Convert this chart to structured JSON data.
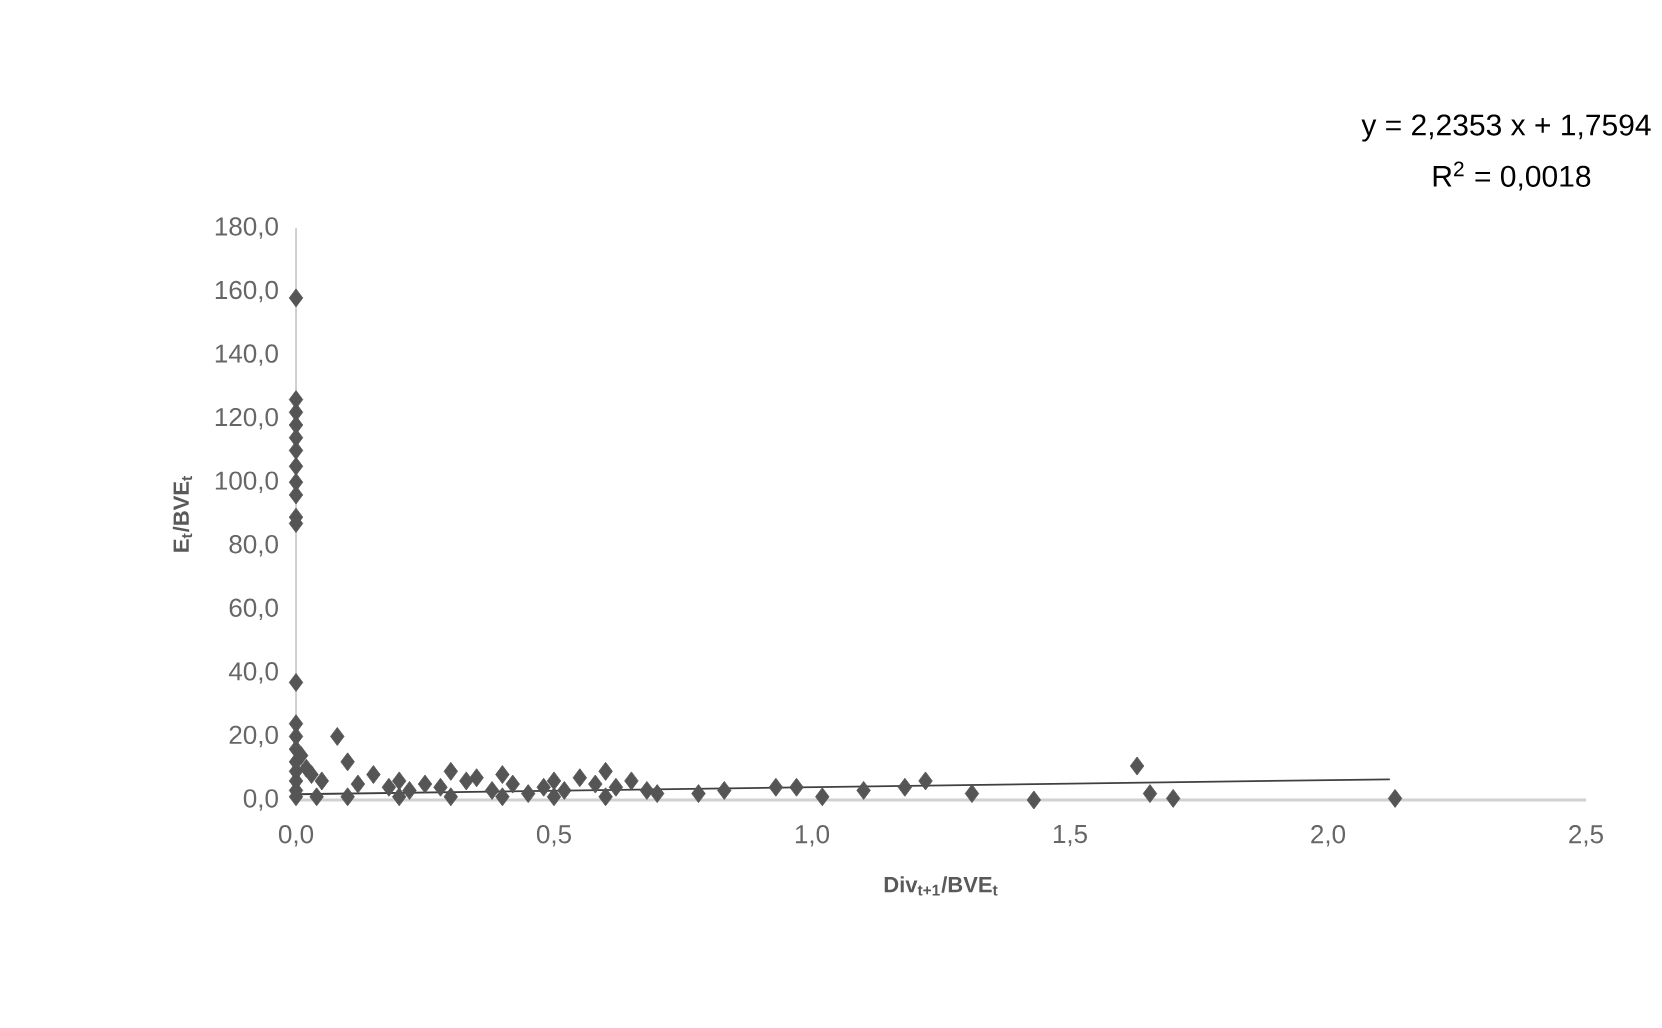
{
  "chart_data": {
    "type": "scatter",
    "xlabel": "Div$_{t+1}$/BVE$_{t}$",
    "ylabel": "E$_{t}$/BVE$_{t}$",
    "annotations": [
      "y = 2,2353 x + 1,7594",
      "R$^{2}$ = 0,0018"
    ],
    "xlim": [
      0,
      2.5
    ],
    "ylim": [
      0,
      180
    ],
    "xticks": [
      {
        "value": 0,
        "label": "0,0"
      },
      {
        "value": 0.5,
        "label": "0,5"
      },
      {
        "value": 1,
        "label": "1,0"
      },
      {
        "value": 1.5,
        "label": "1,5"
      },
      {
        "value": 2,
        "label": "2,0"
      },
      {
        "value": 2.5,
        "label": "2,5"
      }
    ],
    "yticks": [
      {
        "value": 0,
        "label": "0,0"
      },
      {
        "value": 20,
        "label": "20,0"
      },
      {
        "value": 40,
        "label": "40,0"
      },
      {
        "value": 60,
        "label": "60,0"
      },
      {
        "value": 80,
        "label": "80,0"
      },
      {
        "value": 100,
        "label": "100,0"
      },
      {
        "value": 120,
        "label": "120,0"
      },
      {
        "value": 140,
        "label": "140,0"
      },
      {
        "value": 160,
        "label": "160,0"
      },
      {
        "value": 180,
        "label": "180,0"
      }
    ],
    "series": [
      {
        "marker": "diamond",
        "color": "#555555",
        "x": [
          0,
          0,
          0,
          0,
          0,
          0,
          0,
          0,
          0,
          0,
          0,
          0,
          0,
          0,
          0,
          0,
          0,
          0,
          0,
          0,
          0.01,
          0.02,
          0.03,
          0.05,
          0.08,
          0.1,
          0.12,
          0.15,
          0.18,
          0.2,
          0.22,
          0.25,
          0.28,
          0.3,
          0.33,
          0.35,
          0.38,
          0.4,
          0.42,
          0.45,
          0.48,
          0.5,
          0.52,
          0.55,
          0.58,
          0.6,
          0.62,
          0.65,
          0.68,
          0.7,
          0.04,
          0.1,
          0.2,
          0.3,
          0.4,
          0.5,
          0.6,
          0.78,
          0.83,
          0.93,
          0.97,
          1.02,
          1.1,
          1.18,
          1.22,
          1.31,
          1.43,
          1.63,
          1.655,
          1.7,
          2.13
        ],
        "values": [
          158,
          126,
          122,
          118,
          114,
          110,
          105,
          100,
          96,
          89,
          87,
          37,
          24,
          20,
          16,
          12,
          9,
          6,
          3,
          1,
          14,
          10,
          8,
          6,
          20,
          12,
          5,
          8,
          4,
          6,
          3,
          5,
          4,
          9,
          6,
          7,
          3,
          8,
          5,
          2,
          4,
          6,
          3,
          7,
          5,
          9,
          4,
          6,
          3,
          2,
          1,
          1,
          1,
          1,
          1,
          1,
          1,
          2,
          3,
          4,
          4,
          1,
          3,
          4,
          6,
          2,
          0,
          10.7,
          2,
          0.5,
          0.5
        ]
      },
      {
        "type": "line",
        "marker": "none",
        "color": "#404040",
        "x": [
          0,
          2.12
        ],
        "values": [
          1.8,
          6.5
        ]
      }
    ]
  }
}
